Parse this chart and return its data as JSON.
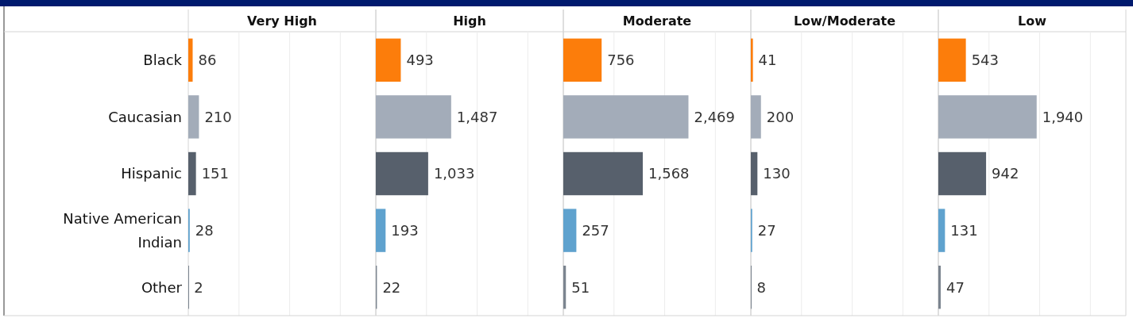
{
  "chart_data": [
    {
      "type": "bar",
      "orientation": "horizontal",
      "title": "Very High",
      "categories": [
        "Black",
        "Caucasian",
        "Hispanic",
        "Native American Indian",
        "Other"
      ],
      "values": [
        86,
        210,
        151,
        28,
        2
      ],
      "value_labels": [
        "86",
        "210",
        "151",
        "28",
        "2"
      ],
      "colors": [
        "#fc7d0b",
        "#a3acb9",
        "#57606c",
        "#5fa2ce",
        "#7b848f"
      ],
      "grid": "x",
      "xlim": [
        0,
        3700
      ],
      "xticks": [
        {
          "value": 0,
          "label": null
        },
        {
          "value": 1000,
          "label": null
        },
        {
          "value": 2000,
          "label": null
        },
        {
          "value": 3000,
          "label": null
        }
      ],
      "tick_labels": "y"
    },
    {
      "type": "bar",
      "orientation": "horizontal",
      "title": "High",
      "categories": [
        null,
        null,
        null,
        null,
        null
      ],
      "values": [
        493,
        1487,
        1033,
        193,
        22
      ],
      "value_labels": [
        "493",
        "1,487",
        "1,033",
        "193",
        "22"
      ],
      "colors": [
        "#fc7d0b",
        "#a3acb9",
        "#57606c",
        "#5fa2ce",
        "#7b848f"
      ],
      "grid": "x",
      "xlim": [
        0,
        3700
      ],
      "xticks": [
        {
          "value": 0,
          "label": null
        },
        {
          "value": 1000,
          "label": null
        },
        {
          "value": 2000,
          "label": null
        },
        {
          "value": 3000,
          "label": null
        }
      ],
      "tick_labels": false
    },
    {
      "type": "bar",
      "orientation": "horizontal",
      "title": "Moderate",
      "categories": [
        null,
        null,
        null,
        null,
        null
      ],
      "values": [
        756,
        2469,
        1568,
        257,
        51
      ],
      "value_labels": [
        "756",
        "2,469",
        "1,568",
        "257",
        "51"
      ],
      "colors": [
        "#fc7d0b",
        "#a3acb9",
        "#57606c",
        "#5fa2ce",
        "#7b848f"
      ],
      "grid": "x",
      "xlim": [
        0,
        3700
      ],
      "xticks": [
        {
          "value": 0,
          "label": null
        },
        {
          "value": 1000,
          "label": null
        },
        {
          "value": 2000,
          "label": null
        },
        {
          "value": 3000,
          "label": null
        }
      ],
      "tick_labels": false
    },
    {
      "type": "bar",
      "orientation": "horizontal",
      "title": "Low/Moderate",
      "categories": [
        null,
        null,
        null,
        null,
        null
      ],
      "values": [
        41,
        200,
        130,
        27,
        8
      ],
      "value_labels": [
        "41",
        "200",
        "130",
        "27",
        "8"
      ],
      "colors": [
        "#fc7d0b",
        "#a3acb9",
        "#57606c",
        "#5fa2ce",
        "#7b848f"
      ],
      "grid": "x",
      "xlim": [
        0,
        3700
      ],
      "xticks": [
        {
          "value": 0,
          "label": null
        },
        {
          "value": 1000,
          "label": null
        },
        {
          "value": 2000,
          "label": null
        },
        {
          "value": 3000,
          "label": null
        }
      ],
      "tick_labels": false
    },
    {
      "type": "bar",
      "orientation": "horizontal",
      "title": "Low",
      "categories": [
        null,
        null,
        null,
        null,
        null
      ],
      "values": [
        543,
        1940,
        942,
        131,
        47
      ],
      "value_labels": [
        "543",
        "1,940",
        "942",
        "131",
        "47"
      ],
      "colors": [
        "#fc7d0b",
        "#a3acb9",
        "#57606c",
        "#5fa2ce",
        "#7b848f"
      ],
      "grid": "x",
      "xlim": [
        0,
        3700
      ],
      "xticks": [
        {
          "value": 0,
          "label": null
        },
        {
          "value": 1000,
          "label": null
        },
        {
          "value": 2000,
          "label": null
        },
        {
          "value": 3000,
          "label": null
        }
      ],
      "tick_labels": false
    }
  ]
}
